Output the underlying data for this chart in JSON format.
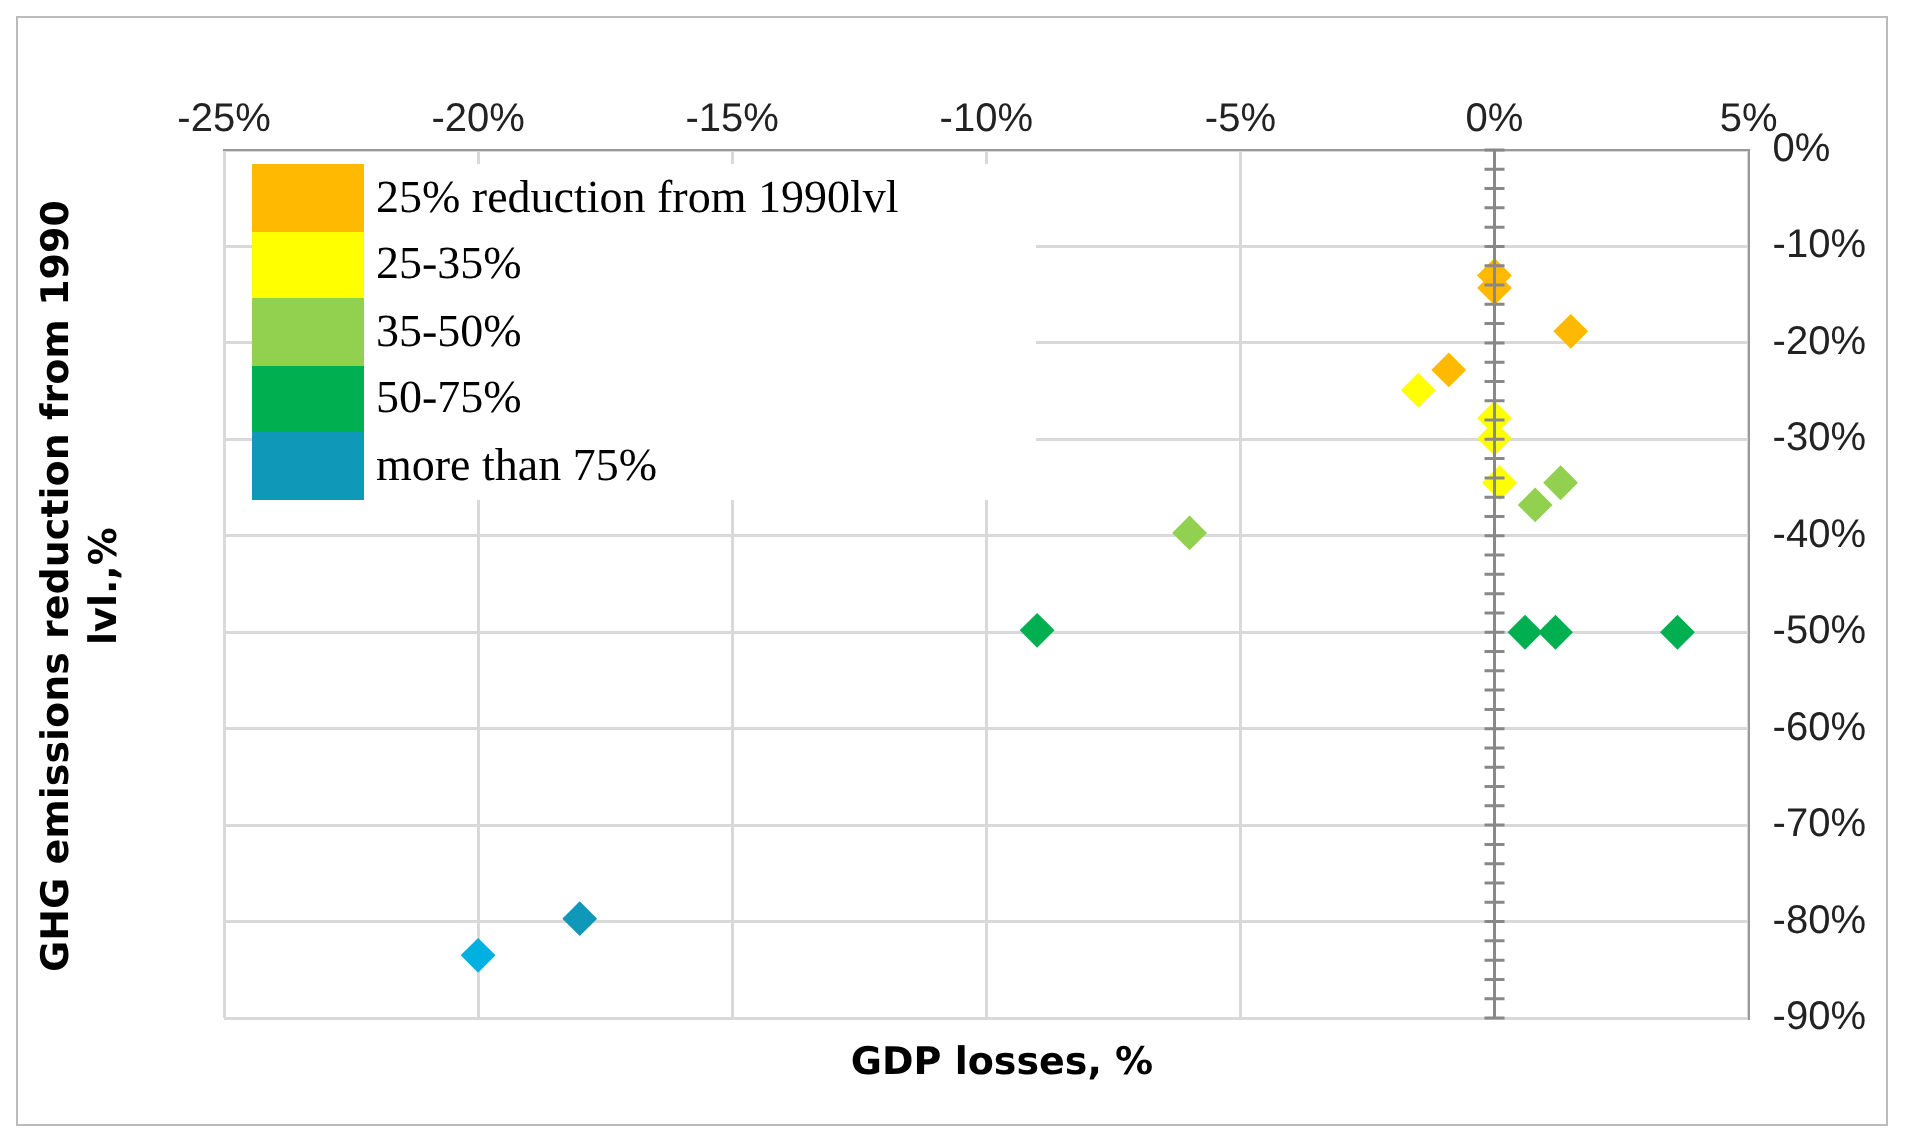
{
  "chart_data": {
    "type": "scatter",
    "xlabel": "GDP losses, %",
    "ylabel": "GHG emissions reduction from 1990 lvl.,%",
    "marker": "diamond",
    "grid": true,
    "legend": "top left",
    "xlim": [
      -25,
      5
    ],
    "xticks": [
      {
        "value": -25,
        "label": "-25%"
      },
      {
        "value": -20,
        "label": "-20%"
      },
      {
        "value": -15,
        "label": "-15%"
      },
      {
        "value": -10,
        "label": "-10%"
      },
      {
        "value": -5,
        "label": "-5%"
      },
      {
        "value": 0,
        "label": "0%"
      },
      {
        "value": 5,
        "label": "5%"
      }
    ],
    "ylim": [
      -90,
      0
    ],
    "yticks": [
      {
        "value": 0,
        "label": "0%"
      },
      {
        "value": -10,
        "label": "-10%"
      },
      {
        "value": -20,
        "label": "-20%"
      },
      {
        "value": -30,
        "label": "-30%"
      },
      {
        "value": -40,
        "label": "-40%"
      },
      {
        "value": -50,
        "label": "-50%"
      },
      {
        "value": -60,
        "label": "-60%"
      },
      {
        "value": -70,
        "label": "-70%"
      },
      {
        "value": -80,
        "label": "-80%"
      },
      {
        "value": -90,
        "label": "-90%"
      }
    ],
    "series": [
      {
        "name": "25% reduction from 1990lvl",
        "color": "#ffb900",
        "x": [
          0,
          0,
          1.5,
          -0.9
        ],
        "values": [
          -13,
          -14.3,
          -18.8,
          -22.8
        ]
      },
      {
        "name": "25-35%",
        "color": "#ffff00",
        "x": [
          -1.5,
          0,
          0,
          0.1
        ],
        "values": [
          -24.9,
          -27.8,
          -29.9,
          -34.5
        ]
      },
      {
        "name": "35-50%",
        "color": "#92d050",
        "x": [
          -6,
          0.8,
          1.3
        ],
        "values": [
          -39.7,
          -36.8,
          -34.5
        ]
      },
      {
        "name": "50-75%",
        "color": "#00b050",
        "x": [
          -9,
          0.6,
          1.2,
          3.6
        ],
        "values": [
          -49.8,
          -50,
          -50,
          -50
        ]
      },
      {
        "name": "more than 75%",
        "color": "#1098b8",
        "colors": [
          "#00b0e0",
          "#1098b8"
        ],
        "x": [
          -20,
          -18
        ],
        "values": [
          -83.5,
          -79.7
        ]
      }
    ]
  }
}
